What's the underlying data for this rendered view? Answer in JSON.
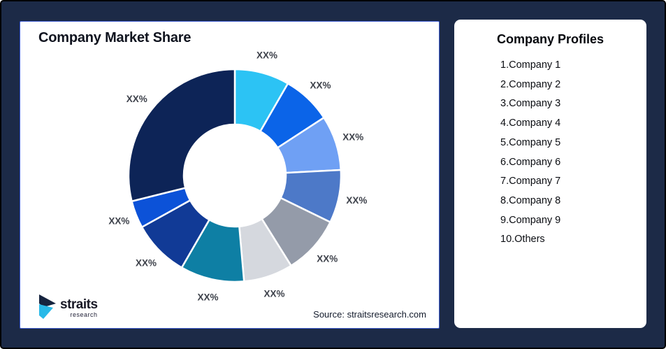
{
  "theme": {
    "background": "#1C2A47",
    "canvas_border": "#000000",
    "panel_background": "#FFFFFF",
    "panel_border": "#3D5BD0",
    "title_color": "#10141F",
    "segment_label_color": "#3E424B",
    "logo_navy": "#16243F",
    "logo_cyan": "#29B9E8"
  },
  "left_panel": {
    "title": "Company Market Share",
    "source": "Source: straitsresearch.com",
    "logo": {
      "name": "straits",
      "sub": "research"
    }
  },
  "right_panel": {
    "title": "Company Profiles",
    "items": [
      "1.Company 1",
      "2.Company 2",
      "3.Company 3",
      "4.Company 4",
      "5.Company 5",
      "6.Company 6",
      "7.Company 7",
      "8.Company 8",
      "9.Company 9",
      "10.Others"
    ]
  },
  "chart_data": {
    "type": "pie",
    "variant": "donut",
    "title": "Company Market Share",
    "unit": "%",
    "start_angle_deg": 0,
    "direction": "clockwise",
    "inner_radius_ratio": 0.48,
    "legend": "none",
    "note": "All slice values are masked as XX% in the source image; percent_est is estimated from slice angles",
    "segments": [
      {
        "label": "XX%",
        "angle_deg": 30,
        "percent_est": 8.3,
        "color": "#2CC3F4"
      },
      {
        "label": "XX%",
        "angle_deg": 27,
        "percent_est": 7.5,
        "color": "#0B64E8"
      },
      {
        "label": "XX%",
        "angle_deg": 30,
        "percent_est": 8.3,
        "color": "#6FA0F4"
      },
      {
        "label": "XX%",
        "angle_deg": 29,
        "percent_est": 8.1,
        "color": "#4D79C8"
      },
      {
        "label": "XX%",
        "angle_deg": 32,
        "percent_est": 8.9,
        "color": "#949BA9"
      },
      {
        "label": "XX%",
        "angle_deg": 27,
        "percent_est": 7.5,
        "color": "#D5D8DE"
      },
      {
        "label": "XX%",
        "angle_deg": 35,
        "percent_est": 9.7,
        "color": "#0E7FA4"
      },
      {
        "label": "XX%",
        "angle_deg": 31,
        "percent_est": 8.6,
        "color": "#113A96"
      },
      {
        "label": "XX%",
        "angle_deg": 15,
        "percent_est": 4.2,
        "color": "#0C52D8"
      },
      {
        "label": "XX%",
        "angle_deg": 104,
        "percent_est": 28.9,
        "color": "#0D2457"
      }
    ]
  }
}
